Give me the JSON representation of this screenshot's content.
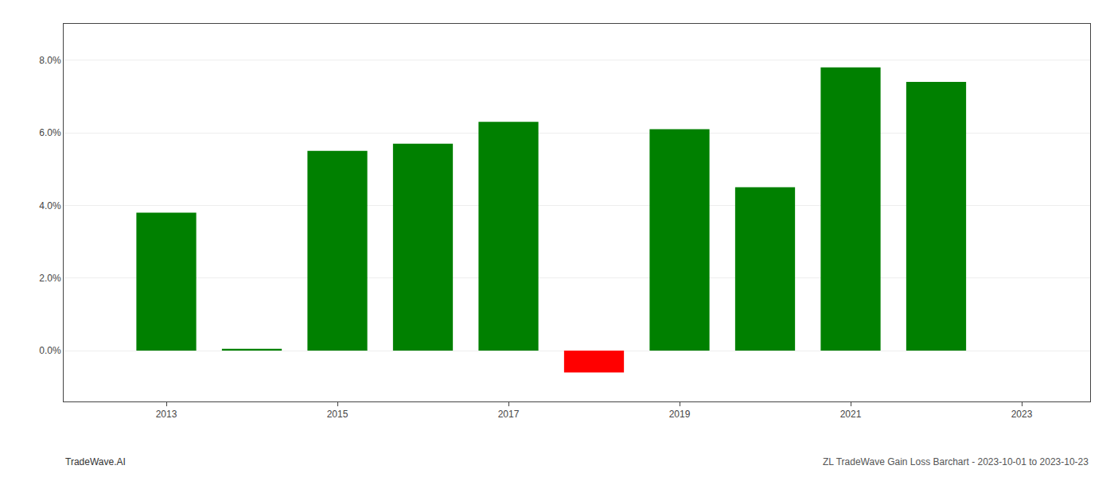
{
  "chart_data": {
    "type": "bar",
    "x": [
      2013,
      2014,
      2015,
      2016,
      2017,
      2018,
      2019,
      2020,
      2021,
      2022
    ],
    "values": [
      0.038,
      0.0005,
      0.055,
      0.057,
      0.063,
      -0.006,
      0.061,
      0.045,
      0.078,
      0.074
    ],
    "colors": [
      "#008000",
      "#008000",
      "#008000",
      "#008000",
      "#008000",
      "#ff0000",
      "#008000",
      "#008000",
      "#008000",
      "#008000"
    ],
    "xlim": [
      2011.8,
      2023.8
    ],
    "xticks": [
      2013,
      2015,
      2017,
      2019,
      2021,
      2023
    ],
    "ylim": [
      -0.014,
      0.09
    ],
    "yticks": [
      {
        "value": 0.0,
        "label": "0.0%"
      },
      {
        "value": 0.02,
        "label": "2.0%"
      },
      {
        "value": 0.04,
        "label": "4.0%"
      },
      {
        "value": 0.06,
        "label": "6.0%"
      },
      {
        "value": 0.08,
        "label": "8.0%"
      }
    ],
    "grid": true,
    "annotations": [
      "TradeWave.AI",
      "ZL TradeWave Gain Loss Barchart - 2023-10-01 to 2023-10-23"
    ]
  }
}
